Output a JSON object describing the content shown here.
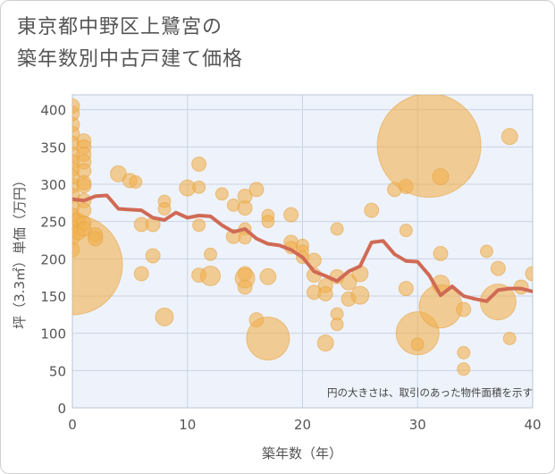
{
  "title_lines": [
    "東京都中野区上鷺宮の",
    "築年数別中古戸建て価格"
  ],
  "note": "円の大きさは、取引のあった物件面積を示す",
  "chart_data": {
    "type": "scatter",
    "xlabel": "築年数（年）",
    "ylabel": "坪（3.3㎡）単価（万円）",
    "xlim": [
      0,
      40
    ],
    "ylim": [
      0,
      420
    ],
    "xticks": [
      0,
      10,
      20,
      30,
      40
    ],
    "yticks": [
      0,
      50,
      100,
      150,
      200,
      250,
      300,
      350,
      400
    ],
    "grid": true,
    "bubble_color": "#f2b04f",
    "line_color": "#d06a55",
    "bubbles": [
      {
        "x": 0,
        "y": 405,
        "s": 8
      },
      {
        "x": 0,
        "y": 395,
        "s": 8
      },
      {
        "x": 0,
        "y": 380,
        "s": 8
      },
      {
        "x": 0,
        "y": 368,
        "s": 8
      },
      {
        "x": 0,
        "y": 355,
        "s": 8
      },
      {
        "x": 0,
        "y": 340,
        "s": 8
      },
      {
        "x": 0,
        "y": 330,
        "s": 8
      },
      {
        "x": 0,
        "y": 320,
        "s": 8
      },
      {
        "x": 0,
        "y": 310,
        "s": 8
      },
      {
        "x": 0,
        "y": 298,
        "s": 8
      },
      {
        "x": 0,
        "y": 285,
        "s": 8
      },
      {
        "x": 0,
        "y": 270,
        "s": 8
      },
      {
        "x": 0,
        "y": 258,
        "s": 8
      },
      {
        "x": 0,
        "y": 242,
        "s": 8
      },
      {
        "x": 0,
        "y": 228,
        "s": 8
      },
      {
        "x": 0,
        "y": 212,
        "s": 8
      },
      {
        "x": 0,
        "y": 192,
        "s": 56
      },
      {
        "x": 0.5,
        "y": 252,
        "s": 8
      },
      {
        "x": 0.5,
        "y": 235,
        "s": 8
      },
      {
        "x": 1,
        "y": 358,
        "s": 8
      },
      {
        "x": 1,
        "y": 350,
        "s": 8
      },
      {
        "x": 1,
        "y": 340,
        "s": 8
      },
      {
        "x": 1,
        "y": 330,
        "s": 8
      },
      {
        "x": 1,
        "y": 318,
        "s": 8
      },
      {
        "x": 1,
        "y": 302,
        "s": 8
      },
      {
        "x": 1,
        "y": 298,
        "s": 8
      },
      {
        "x": 1,
        "y": 278,
        "s": 8
      },
      {
        "x": 1,
        "y": 265,
        "s": 8
      },
      {
        "x": 1,
        "y": 248,
        "s": 8
      },
      {
        "x": 1,
        "y": 240,
        "s": 8
      },
      {
        "x": 2,
        "y": 232,
        "s": 8
      },
      {
        "x": 2,
        "y": 227,
        "s": 8
      },
      {
        "x": 4,
        "y": 314,
        "s": 9
      },
      {
        "x": 5,
        "y": 305,
        "s": 8
      },
      {
        "x": 5.5,
        "y": 303,
        "s": 7
      },
      {
        "x": 6,
        "y": 246,
        "s": 8
      },
      {
        "x": 6,
        "y": 180,
        "s": 8
      },
      {
        "x": 7,
        "y": 204,
        "s": 8
      },
      {
        "x": 7,
        "y": 246,
        "s": 8
      },
      {
        "x": 8,
        "y": 277,
        "s": 7
      },
      {
        "x": 8,
        "y": 267,
        "s": 7
      },
      {
        "x": 8,
        "y": 122,
        "s": 10
      },
      {
        "x": 10,
        "y": 295,
        "s": 9
      },
      {
        "x": 11,
        "y": 327,
        "s": 8
      },
      {
        "x": 11,
        "y": 296,
        "s": 7
      },
      {
        "x": 11,
        "y": 245,
        "s": 7
      },
      {
        "x": 11,
        "y": 178,
        "s": 8
      },
      {
        "x": 12,
        "y": 206,
        "s": 7
      },
      {
        "x": 12,
        "y": 177,
        "s": 11
      },
      {
        "x": 13,
        "y": 287,
        "s": 7
      },
      {
        "x": 14,
        "y": 230,
        "s": 8
      },
      {
        "x": 14,
        "y": 272,
        "s": 7
      },
      {
        "x": 15,
        "y": 284,
        "s": 8
      },
      {
        "x": 15,
        "y": 268,
        "s": 8
      },
      {
        "x": 15,
        "y": 240,
        "s": 7
      },
      {
        "x": 15,
        "y": 228,
        "s": 7
      },
      {
        "x": 15,
        "y": 180,
        "s": 8
      },
      {
        "x": 15,
        "y": 174,
        "s": 11
      },
      {
        "x": 15,
        "y": 162,
        "s": 8
      },
      {
        "x": 16,
        "y": 293,
        "s": 8
      },
      {
        "x": 16,
        "y": 118,
        "s": 8
      },
      {
        "x": 17,
        "y": 258,
        "s": 7
      },
      {
        "x": 17,
        "y": 250,
        "s": 7
      },
      {
        "x": 17,
        "y": 176,
        "s": 9
      },
      {
        "x": 17,
        "y": 93,
        "s": 24
      },
      {
        "x": 19,
        "y": 259,
        "s": 8
      },
      {
        "x": 19,
        "y": 222,
        "s": 8
      },
      {
        "x": 19,
        "y": 215,
        "s": 7
      },
      {
        "x": 20,
        "y": 218,
        "s": 7
      },
      {
        "x": 20,
        "y": 210,
        "s": 7
      },
      {
        "x": 20,
        "y": 202,
        "s": 7
      },
      {
        "x": 21,
        "y": 198,
        "s": 8
      },
      {
        "x": 21,
        "y": 178,
        "s": 8
      },
      {
        "x": 21,
        "y": 155,
        "s": 8
      },
      {
        "x": 22,
        "y": 164,
        "s": 8
      },
      {
        "x": 22,
        "y": 153,
        "s": 8
      },
      {
        "x": 22,
        "y": 87,
        "s": 9
      },
      {
        "x": 23,
        "y": 240,
        "s": 7
      },
      {
        "x": 23,
        "y": 176,
        "s": 8
      },
      {
        "x": 23,
        "y": 126,
        "s": 7
      },
      {
        "x": 23,
        "y": 112,
        "s": 7
      },
      {
        "x": 24,
        "y": 169,
        "s": 9
      },
      {
        "x": 24,
        "y": 146,
        "s": 8
      },
      {
        "x": 25,
        "y": 180,
        "s": 9
      },
      {
        "x": 25,
        "y": 151,
        "s": 10
      },
      {
        "x": 26,
        "y": 265,
        "s": 8
      },
      {
        "x": 28,
        "y": 293,
        "s": 8
      },
      {
        "x": 29,
        "y": 297,
        "s": 8
      },
      {
        "x": 29,
        "y": 238,
        "s": 7
      },
      {
        "x": 29,
        "y": 160,
        "s": 8
      },
      {
        "x": 30,
        "y": 100,
        "s": 24
      },
      {
        "x": 30,
        "y": 85,
        "s": 7
      },
      {
        "x": 31,
        "y": 352,
        "s": 58
      },
      {
        "x": 32,
        "y": 310,
        "s": 9
      },
      {
        "x": 32,
        "y": 207,
        "s": 8
      },
      {
        "x": 32,
        "y": 166,
        "s": 10
      },
      {
        "x": 32,
        "y": 136,
        "s": 24
      },
      {
        "x": 34,
        "y": 132,
        "s": 8
      },
      {
        "x": 34,
        "y": 74,
        "s": 7
      },
      {
        "x": 34,
        "y": 52,
        "s": 7
      },
      {
        "x": 36,
        "y": 210,
        "s": 7
      },
      {
        "x": 37,
        "y": 187,
        "s": 8
      },
      {
        "x": 37,
        "y": 142,
        "s": 20
      },
      {
        "x": 38,
        "y": 364,
        "s": 9
      },
      {
        "x": 38,
        "y": 93,
        "s": 7
      },
      {
        "x": 39,
        "y": 162,
        "s": 8
      },
      {
        "x": 40,
        "y": 180,
        "s": 8
      }
    ],
    "line": {
      "x": [
        0,
        1,
        2,
        3,
        4,
        5,
        6,
        7,
        8,
        9,
        10,
        11,
        12,
        13,
        14,
        15,
        16,
        17,
        18,
        19,
        20,
        21,
        22,
        23,
        24,
        25,
        26,
        27,
        28,
        29,
        30,
        31,
        32,
        33,
        34,
        35,
        36,
        37,
        38,
        39,
        40
      ],
      "y": [
        280,
        278,
        284,
        285,
        267,
        266,
        265,
        255,
        252,
        262,
        255,
        258,
        257,
        245,
        236,
        240,
        227,
        220,
        218,
        212,
        202,
        183,
        177,
        170,
        183,
        190,
        222,
        224,
        206,
        197,
        196,
        178,
        151,
        163,
        150,
        146,
        143,
        158,
        160,
        160,
        156
      ]
    }
  }
}
